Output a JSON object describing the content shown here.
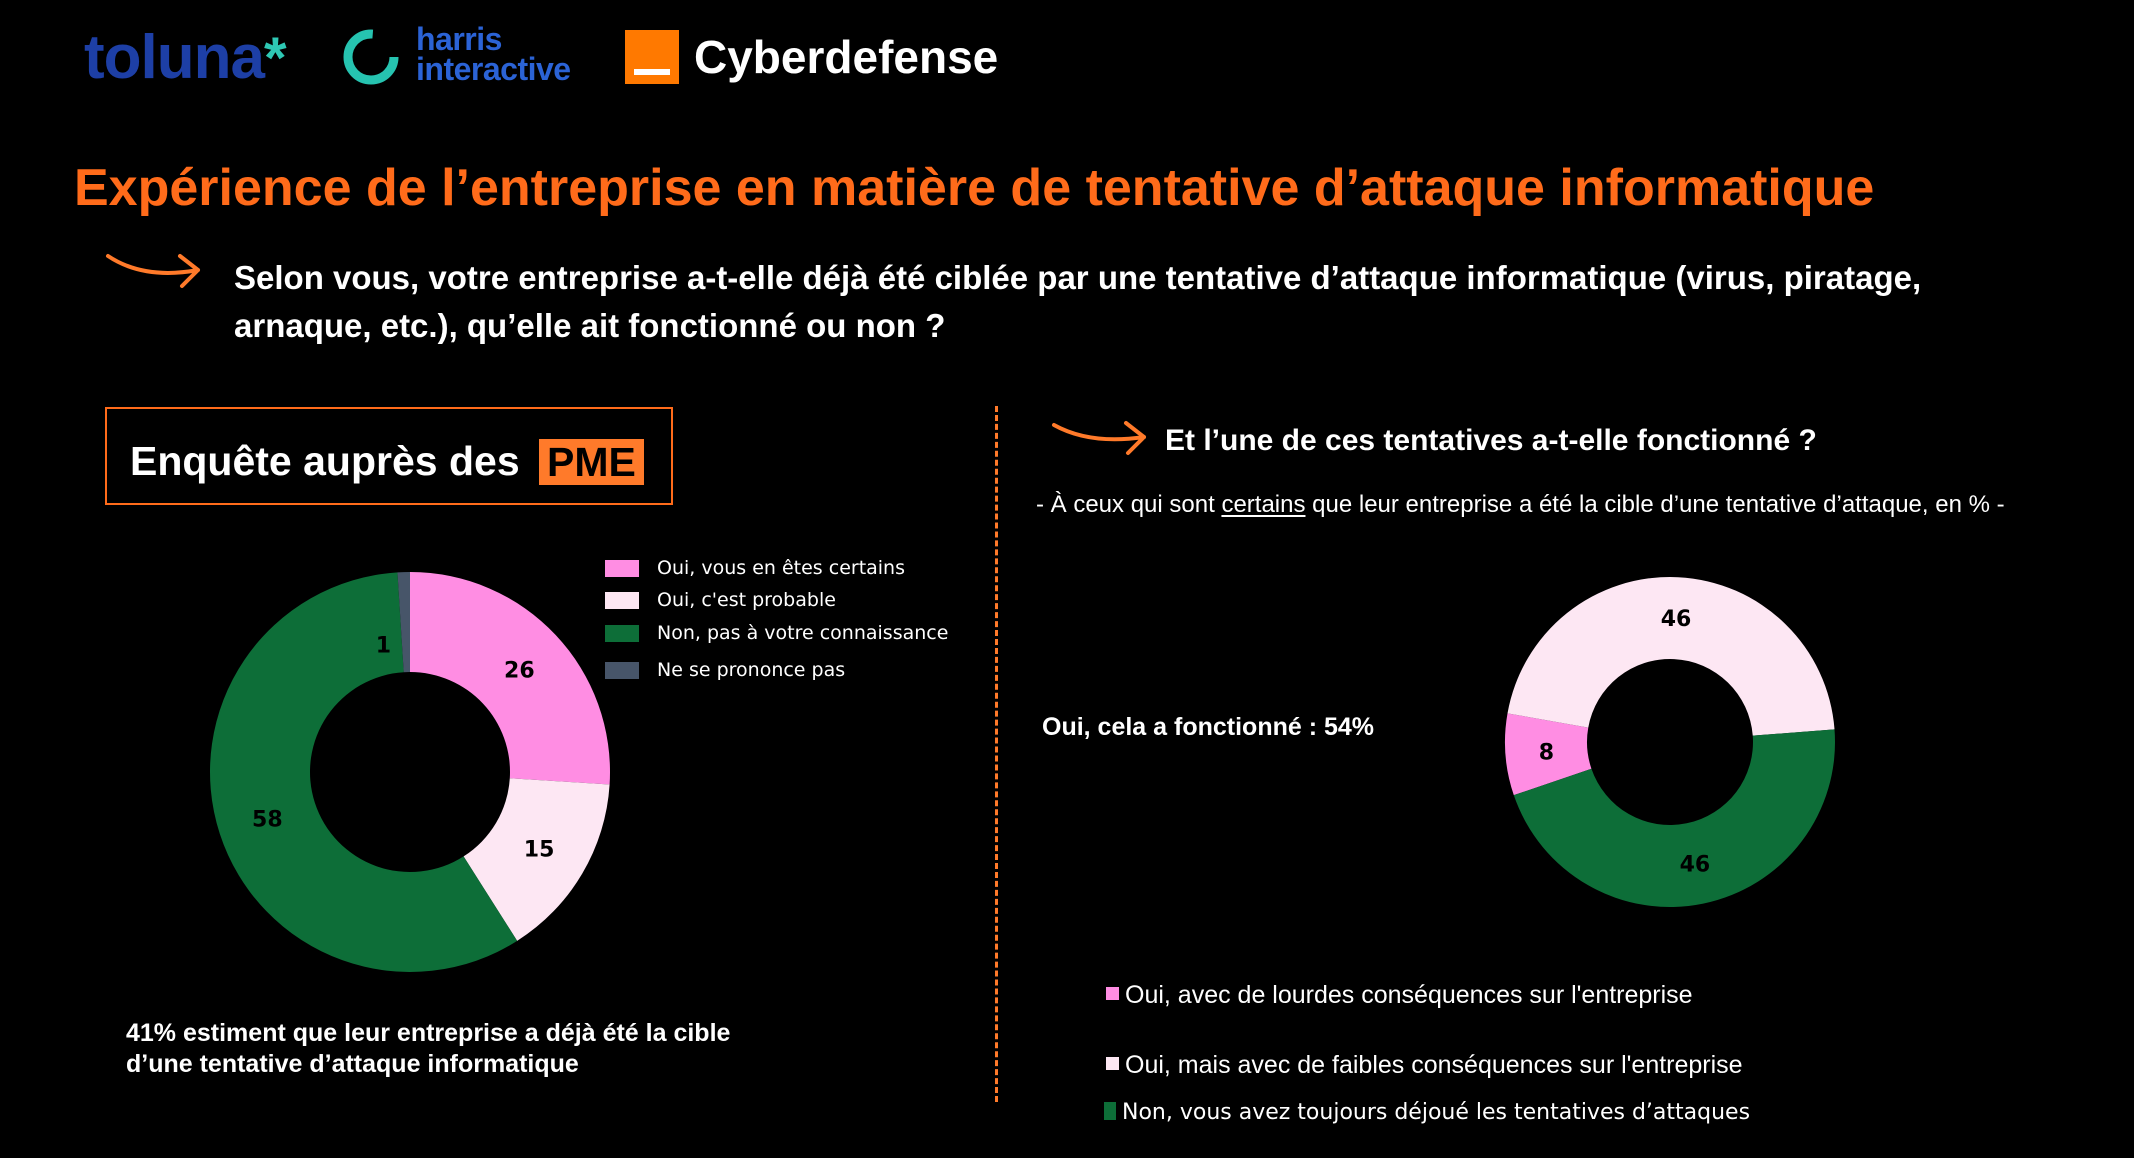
{
  "logos": {
    "toluna": "toluna",
    "harris_line1": "harris",
    "harris_line2": "interactive",
    "cyberdefense": "Cyberdefense"
  },
  "title": "Expérience de l’entreprise en matière de tentative d’attaque informatique",
  "question": "Selon vous, votre entreprise a-t-elle déjà été ciblée par une tentative d’attaque informatique (virus, piratage, arnaque, etc.), qu’elle ait fonctionné ou non ?",
  "survey": {
    "label": "Enquête auprès des",
    "highlight": "PME"
  },
  "left_summary": "41% estiment que leur entreprise a déjà été la cible d’une tentative d’attaque informatique",
  "right": {
    "question": "Et l’une de ces tentatives a-t-elle fonctionné ?",
    "base_prefix": "- À ceux qui sont ",
    "base_underlined": "certains",
    "base_suffix": " que leur entreprise a été la cible d’une tentative d’attaque, en %  -",
    "yes_note": "Oui, cela a fonctionné : 54%"
  },
  "colors": {
    "pink": "#ff8de3",
    "light_pink": "#fde7f3",
    "green": "#0d6e38",
    "slate": "#475569",
    "accent": "#ff6b1a",
    "background": "#000000"
  },
  "chart_data": [
    {
      "type": "pie",
      "donut": true,
      "title": "",
      "categories": [
        "Oui, vous en êtes certains",
        "Oui, c'est probable",
        "Non, pas à votre connaissance",
        "Ne se prononce pas"
      ],
      "values": [
        26,
        15,
        58,
        1
      ],
      "colors": [
        "#ff8de3",
        "#fde7f3",
        "#0d6e38",
        "#475569"
      ],
      "labels": [
        "26",
        "15",
        "58",
        "1"
      ],
      "legend_position": "right"
    },
    {
      "type": "pie",
      "donut": true,
      "title": "",
      "categories": [
        "Oui, avec de lourdes conséquences sur l'entreprise",
        "Oui, mais avec de faibles conséquences sur l'entreprise",
        "Non, vous avez toujours déjoué les tentatives d’attaques"
      ],
      "values": [
        8,
        46,
        46
      ],
      "colors": [
        "#ff8de3",
        "#fde7f3",
        "#0d6e38"
      ],
      "labels": [
        "8",
        "46",
        "46"
      ],
      "legend_position": "bottom"
    }
  ]
}
